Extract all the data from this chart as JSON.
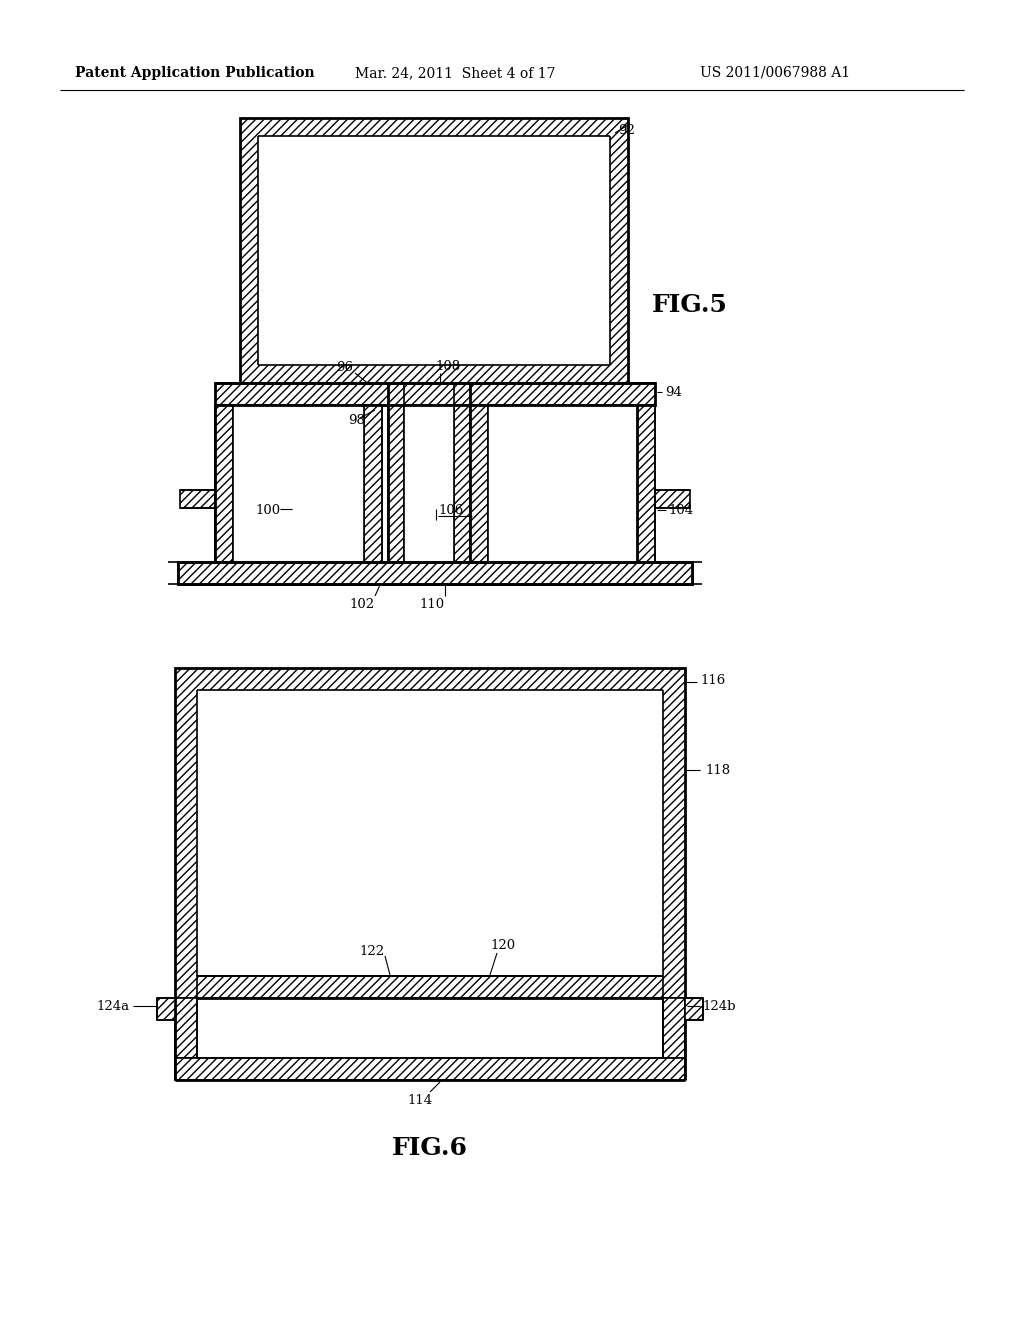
{
  "bg_color": "#ffffff",
  "header_left": "Patent Application Publication",
  "header_mid": "Mar. 24, 2011  Sheet 4 of 17",
  "header_right": "US 2011/0067988 A1",
  "fig5_label": "FIG.5",
  "fig6_label": "FIG.6"
}
